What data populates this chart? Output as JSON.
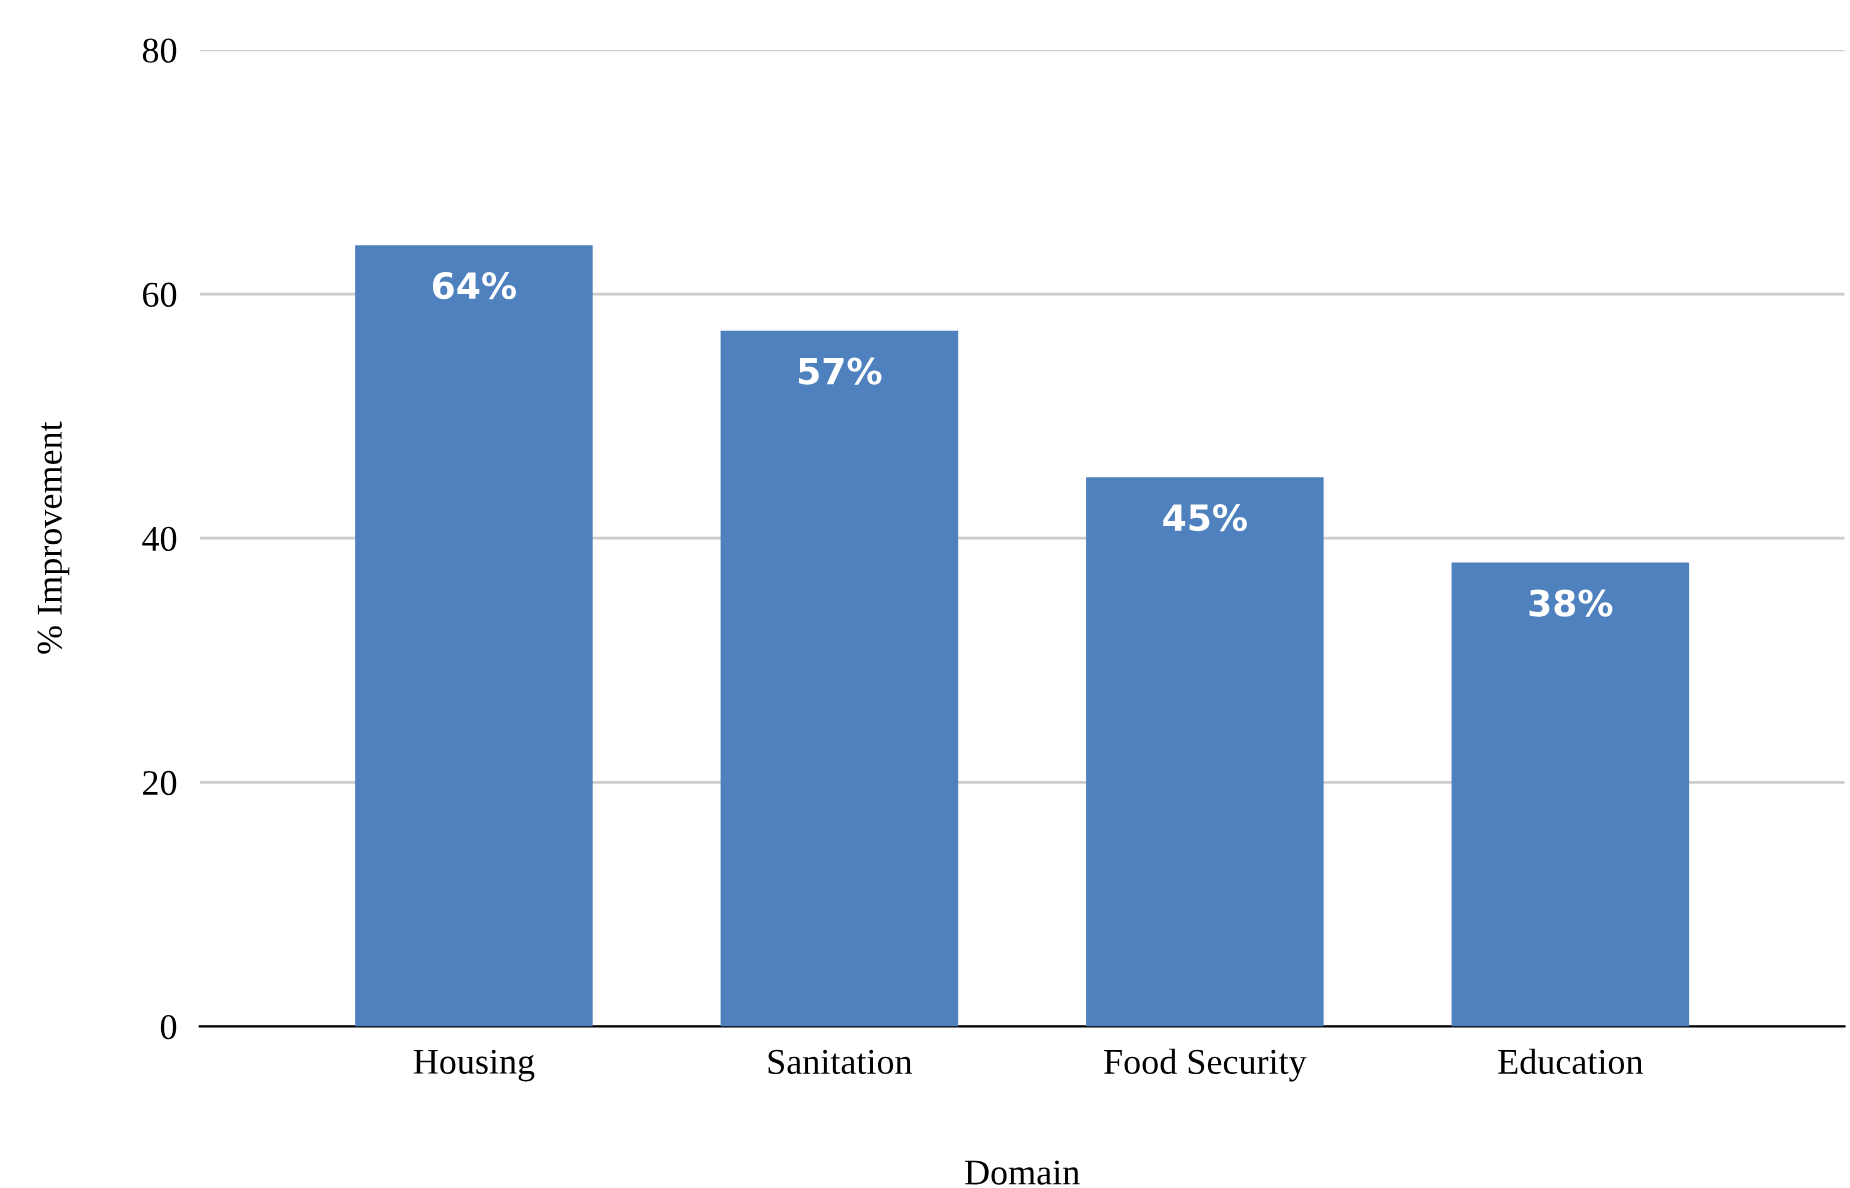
{
  "chart_data": {
    "type": "bar",
    "xlabel": "Domain",
    "ylabel": "% Improvement",
    "categories": [
      "Housing",
      "Sanitation",
      "Food Security",
      "Education"
    ],
    "values": [
      64,
      57,
      45,
      38
    ],
    "color": "#4e81bd",
    "value_labels": [
      "64%",
      "57%",
      "45%",
      "38%"
    ],
    "ylim": [
      0,
      80
    ],
    "yticks": [
      0,
      20,
      40,
      60,
      80
    ],
    "grid": "y",
    "legend": false
  }
}
